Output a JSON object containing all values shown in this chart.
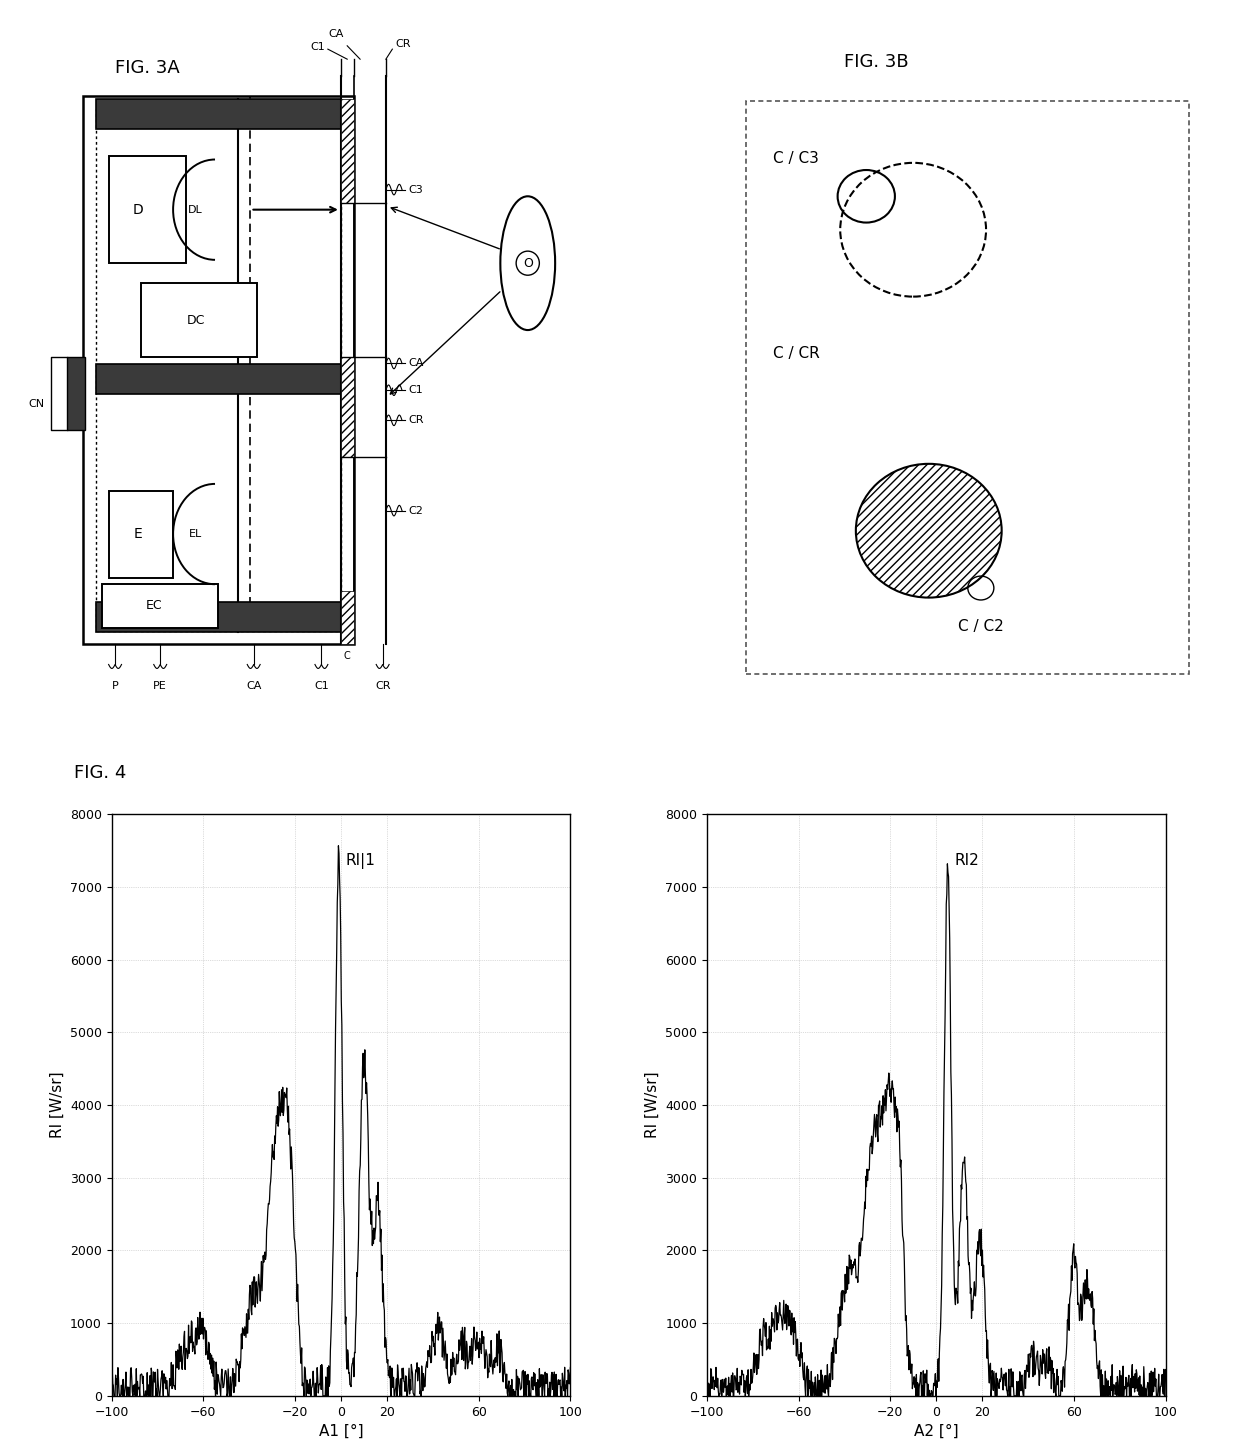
{
  "fig_labels": {
    "fig3a": "FIG. 3A",
    "fig3b": "FIG. 3B",
    "fig4": "FIG. 4"
  },
  "plot1": {
    "xlabel": "A1 [°]",
    "ylabel": "RI [W/sr]",
    "label": "RI|1",
    "xlim": [
      -100,
      100
    ],
    "ylim": [
      0,
      8000
    ],
    "yticks": [
      0,
      1000,
      2000,
      3000,
      4000,
      5000,
      6000,
      7000,
      8000
    ],
    "xticks": [
      -100,
      -60,
      -20,
      0,
      20,
      60,
      100
    ]
  },
  "plot2": {
    "xlabel": "A2 [°]",
    "ylabel": "RI [W/sr]",
    "label": "RI2",
    "xlim": [
      -100,
      100
    ],
    "ylim": [
      0,
      8000
    ],
    "yticks": [
      0,
      1000,
      2000,
      3000,
      4000,
      5000,
      6000,
      7000,
      8000
    ],
    "xticks": [
      -100,
      -60,
      -20,
      0,
      20,
      60,
      100
    ]
  },
  "background_color": "#ffffff",
  "line_color": "#000000",
  "grid_color": "#bbbbbb"
}
